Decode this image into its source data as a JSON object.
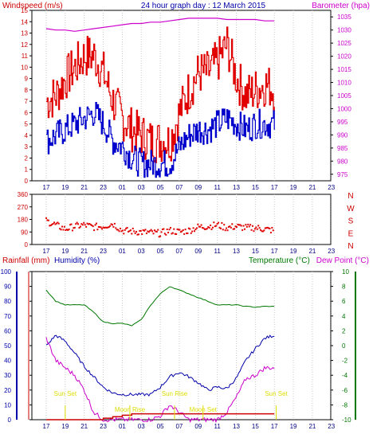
{
  "wind_panel": {
    "title_left": "Windspeed (m/s)",
    "title_center": "24 hour graph day : 12 March 2015",
    "title_right": "Barometer (hpa)",
    "colors": {
      "gust": "#e00000",
      "speed": "#0000cc",
      "baro": "#cc00cc",
      "text_blue": "#0000aa",
      "text_red": "#cc0000"
    }
  },
  "dir_panel": {
    "compass": [
      "N",
      "W",
      "S",
      "E",
      "N"
    ],
    "color": "#e00000"
  },
  "bottom_panel": {
    "title_rain": "Rainfall (mm)",
    "title_humidity": "Humidity (%)",
    "title_temp": "Temperature (°C)",
    "title_dew": "Dew Point (°C)",
    "annotations": [
      "Sun Set",
      "Moon Rise",
      "Sun Rise",
      "Moon Set",
      "Sun Set"
    ],
    "colors": {
      "humidity": "#0000aa",
      "temp": "#007700",
      "dew": "#cc00cc",
      "rain": "#cc0000",
      "annot": "#dddd00"
    }
  },
  "x_ticks": [
    "17",
    "19",
    "21",
    "23",
    "01",
    "03",
    "05",
    "07",
    "09",
    "11",
    "13",
    "15",
    "17",
    "19",
    "21",
    "23"
  ],
  "chart_data": [
    {
      "type": "line",
      "id": "wind",
      "x_hours": [
        0,
        1,
        2,
        3,
        4,
        5,
        6,
        7,
        8,
        9,
        10,
        11,
        12,
        13,
        14,
        15,
        16,
        17,
        18,
        19,
        20,
        21,
        22,
        23,
        24
      ],
      "series": [
        {
          "name": "Windspeed",
          "axis": "left",
          "values": [
            3.5,
            4,
            4.5,
            5,
            5.5,
            6,
            5,
            3.5,
            3,
            2,
            1.5,
            1.5,
            1.5,
            1.5,
            3,
            4,
            4.5,
            4.5,
            5,
            5.5,
            5,
            4.5,
            5,
            5,
            5
          ]
        },
        {
          "name": "Gust",
          "axis": "left",
          "values": [
            7,
            7.5,
            9,
            10,
            11,
            11,
            9.5,
            7,
            5.5,
            4.5,
            4,
            3.5,
            3.5,
            3.5,
            6,
            8,
            9.5,
            9.5,
            10.5,
            12,
            9,
            7.5,
            8,
            8.5,
            8
          ]
        },
        {
          "name": "Barometer",
          "axis": "right",
          "values": [
            1030.5,
            1030,
            1030,
            1029.5,
            1030,
            1030.5,
            1031,
            1031.5,
            1032,
            1032.5,
            1032.5,
            1033,
            1033,
            1033.5,
            1034,
            1034.5,
            1034.5,
            1034.5,
            1034.5,
            1034,
            1034,
            1034,
            1034,
            1033.5,
            1033.5
          ]
        }
      ],
      "y_left": {
        "min": 0,
        "max": 15,
        "ticks": [
          0,
          1,
          2,
          3,
          4,
          5,
          6,
          7,
          8,
          9,
          10,
          11,
          12,
          13,
          14,
          15
        ]
      },
      "y_right": {
        "min": 972.5,
        "max": 1037.5,
        "ticks": [
          975,
          980,
          985,
          990,
          995,
          1000,
          1005,
          1010,
          1015,
          1020,
          1025,
          1030,
          1035
        ]
      },
      "grid": "vertical"
    },
    {
      "type": "scatter",
      "id": "direction",
      "x_hours": [
        0,
        1,
        2,
        3,
        4,
        5,
        6,
        7,
        8,
        9,
        10,
        11,
        12,
        13,
        14,
        15,
        16,
        17,
        18,
        19,
        20,
        21,
        22,
        23,
        24
      ],
      "series": [
        {
          "name": "Wind Direction",
          "values": [
            170,
            140,
            110,
            130,
            140,
            125,
            130,
            150,
            100,
            95,
            90,
            85,
            80,
            100,
            90,
            100,
            125,
            130,
            140,
            120,
            130,
            120,
            120,
            110,
            100
          ]
        }
      ],
      "y": {
        "min": 0,
        "max": 360,
        "ticks": [
          0,
          90,
          180,
          270,
          360
        ]
      },
      "grid": "vertical"
    },
    {
      "type": "line",
      "id": "climate",
      "x_hours": [
        0,
        1,
        2,
        3,
        4,
        5,
        6,
        7,
        8,
        9,
        10,
        11,
        12,
        13,
        14,
        15,
        16,
        17,
        18,
        19,
        20,
        21,
        22,
        23,
        24
      ],
      "series": [
        {
          "name": "Humidity",
          "axis": "left",
          "values": [
            50,
            57,
            53,
            45,
            36,
            29,
            22,
            18,
            17,
            17,
            17,
            17,
            22,
            29,
            32,
            29,
            25,
            20,
            22,
            21,
            28,
            40,
            48,
            55,
            57
          ]
        },
        {
          "name": "Temperature",
          "axis": "right",
          "values": [
            7.5,
            6,
            5.5,
            5.5,
            5.5,
            4.5,
            3.2,
            3,
            3,
            2.7,
            3.5,
            5.5,
            7,
            8,
            7.5,
            7,
            6.5,
            6,
            5.5,
            5.5,
            5.5,
            5.3,
            5.2,
            5.3,
            5.3
          ]
        },
        {
          "name": "Dew Point",
          "axis": "right",
          "values": [
            1,
            -2,
            -3,
            -4,
            -6,
            -9,
            -10,
            -10,
            -10,
            -10,
            -10,
            -10,
            -9.5,
            -8,
            -9,
            -10,
            -10,
            -10,
            -10,
            -9,
            -7,
            -4.5,
            -4,
            -3,
            -3
          ]
        },
        {
          "name": "Rainfall",
          "axis": "left",
          "values": [
            0,
            0,
            0,
            0,
            0,
            0,
            1,
            2,
            3,
            4,
            4,
            4,
            4,
            4,
            4,
            4,
            4,
            4,
            4,
            4,
            4,
            4,
            4,
            4,
            4
          ]
        }
      ],
      "y_left": {
        "min": 0,
        "max": 100,
        "ticks": [
          0,
          10,
          20,
          30,
          40,
          50,
          60,
          70,
          80,
          90,
          100
        ]
      },
      "y_right": {
        "min": -10,
        "max": 10,
        "ticks": [
          -10,
          -8,
          -6,
          -4,
          -2,
          0,
          2,
          4,
          6,
          8,
          10
        ]
      },
      "grid": "vertical"
    }
  ]
}
